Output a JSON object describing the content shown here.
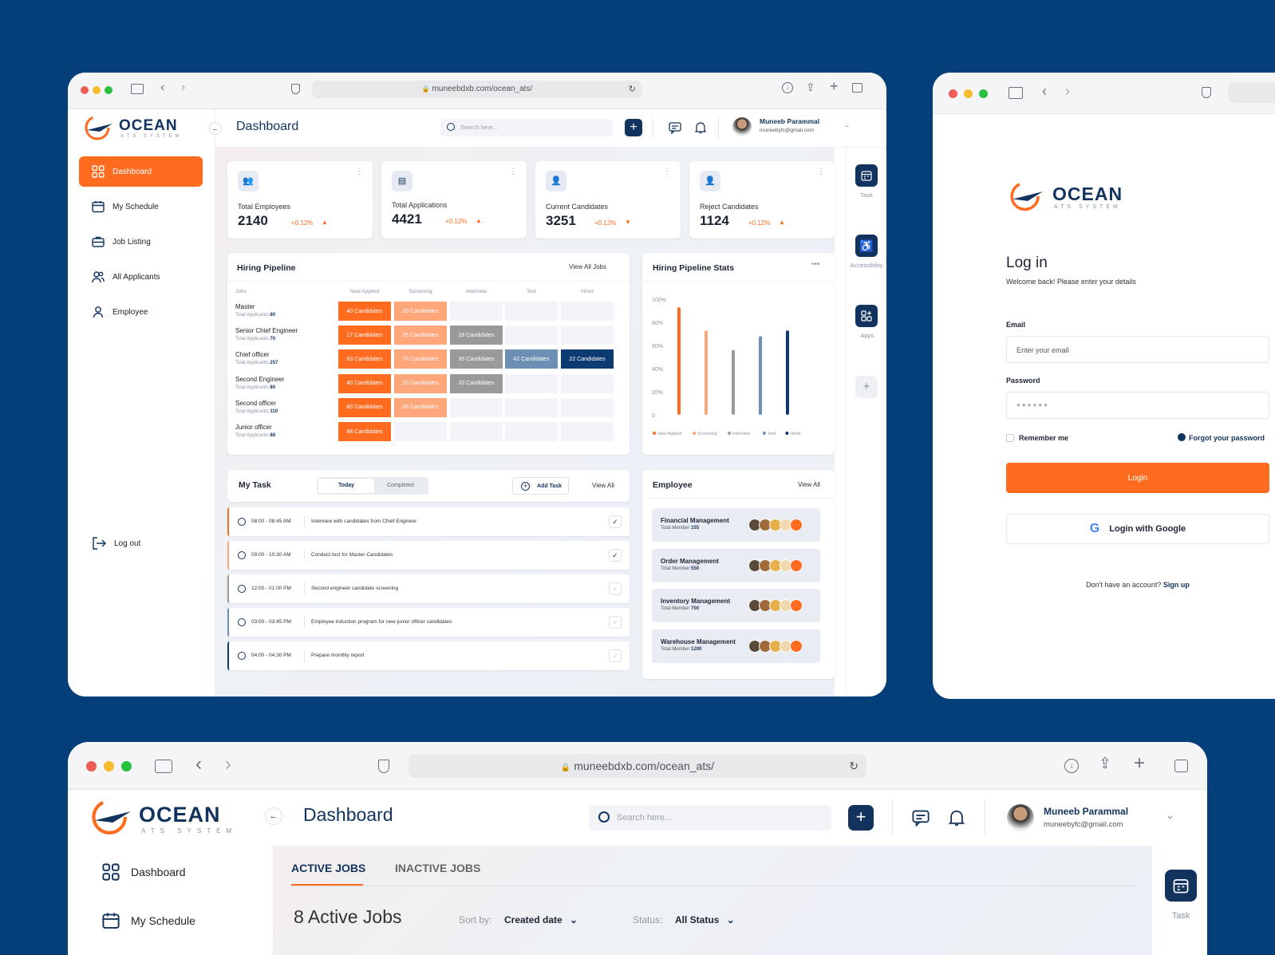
{
  "browser": {
    "url": "muneebdxb.com/ocean_ats/"
  },
  "logo": {
    "name": "OCEAN",
    "sub": "ATS SYSTEM"
  },
  "header": {
    "title": "Dashboard",
    "search_placeholder": "Search here...",
    "user_name": "Muneeb Parammal",
    "user_email": "muneebyfc@gmail.com"
  },
  "sidebar": {
    "items": [
      "Dashboard",
      "My Schedule",
      "Job Listing",
      "All Applicants",
      "Employee"
    ],
    "logout": "Log out"
  },
  "stats": [
    {
      "label": "Total Employees",
      "value": "2140",
      "change": "+0.12%",
      "dir": "up"
    },
    {
      "label": "Total Applications",
      "value": "4421",
      "change": "+0.12%",
      "dir": "up"
    },
    {
      "label": "Current Candidates",
      "value": "3251",
      "change": "+0.12%",
      "dir": "down"
    },
    {
      "label": "Reject Candidates",
      "value": "1124",
      "change": "+0.12%",
      "dir": "up"
    }
  ],
  "pipeline": {
    "title": "Hiring Pipeline",
    "view_all": "View All Jobs",
    "columns": [
      "Jobs",
      "New Applied",
      "Screening",
      "Interview",
      "Test",
      "Hired"
    ],
    "total_label": "Total Applicants",
    "rows": [
      {
        "job": "Master",
        "total": "80",
        "cells": [
          "40 Candidates",
          "20 Candidates",
          "",
          "",
          ""
        ]
      },
      {
        "job": "Senior Chief Engineer",
        "total": "70",
        "cells": [
          "17 Candidates",
          "35 Candidates",
          "18 Candidates",
          "",
          ""
        ]
      },
      {
        "job": "Chief officer",
        "total": "257",
        "cells": [
          "93 Candidates",
          "70 Candidates",
          "30 Candidates",
          "42 Candidates",
          "22 Candidates"
        ]
      },
      {
        "job": "Second Engineer",
        "total": "80",
        "cells": [
          "40 Candidates",
          "20 Candidates",
          "20 Candidates",
          "",
          ""
        ]
      },
      {
        "job": "Second officer",
        "total": "110",
        "cells": [
          "80 Candidates",
          "30 Candidates",
          "",
          "",
          ""
        ]
      },
      {
        "job": "Junior officer",
        "total": "88",
        "cells": [
          "88 Candidates",
          "",
          "",
          "",
          ""
        ]
      }
    ]
  },
  "chart_data": {
    "type": "bar",
    "title": "Hiring Pipeline Stats",
    "categories": [
      "New Applied",
      "Screening",
      "Interview",
      "Test",
      "Hired"
    ],
    "values": [
      93,
      73,
      56,
      68,
      73
    ],
    "ylim": [
      0,
      100
    ],
    "yticks": [
      "0",
      "20%",
      "40%",
      "60%",
      "80%",
      "100%"
    ],
    "colors": [
      "#ff6b1f",
      "#ffa67a",
      "#9a9a9a",
      "#6d8fb3",
      "#0c3a73"
    ],
    "legend": "bottom"
  },
  "tasks": {
    "title": "My Task",
    "tab_today": "Today",
    "tab_completed": "Completed",
    "add": "Add Task",
    "view_all": "View All",
    "items": [
      {
        "time": "08:00 - 08:45 AM",
        "text": "Interview with candidates from Chief Engineer",
        "done": true,
        "color": "#ff6b1f"
      },
      {
        "time": "09:00 - 10:30 AM",
        "text": "Conduct test for  Master Candidates",
        "done": true,
        "color": "#ffa67a"
      },
      {
        "time": "12:00 - 01:00 PM",
        "text": "Second engineer candidate screening",
        "done": false,
        "color": "#9a9a9a"
      },
      {
        "time": "03:00 - 03:45 PM",
        "text": "Employee induction program for new junior officer candidates",
        "done": false,
        "color": "#6d8fb3"
      },
      {
        "time": "04:00 - 04:30 PM",
        "text": "Prepare monthly report",
        "done": false,
        "color": "#0c3a73"
      }
    ]
  },
  "employee": {
    "title": "Employee",
    "view_all": "View All",
    "member_label": "Total Member",
    "groups": [
      {
        "name": "Financial Management",
        "count": "155"
      },
      {
        "name": "Order Management",
        "count": "550"
      },
      {
        "name": "Inventory Management",
        "count": "700"
      },
      {
        "name": "Warehouse Management",
        "count": "1200"
      }
    ]
  },
  "rightbar": [
    "Task",
    "Accessibility",
    "Apps"
  ],
  "login": {
    "title": "Log in",
    "subtitle": "Welcome back! Please enter your details",
    "email_label": "Email",
    "email_placeholder": "Enter your email",
    "password_label": "Password",
    "password_value": "●●●●●●",
    "remember": "Remember me",
    "forgot": "Forgot your password",
    "login_btn": "Login",
    "google_btn": "Login with Google",
    "no_account": "Don't have an account?",
    "signup": "Sign up"
  },
  "jobs": {
    "tab_active": "ACTIVE JOBS",
    "tab_inactive": "INACTIVE JOBS",
    "heading": "8 Active Jobs",
    "sort_label": "Sort by:",
    "sort_value": "Created date",
    "status_label": "Status:",
    "status_value": "All Status"
  }
}
